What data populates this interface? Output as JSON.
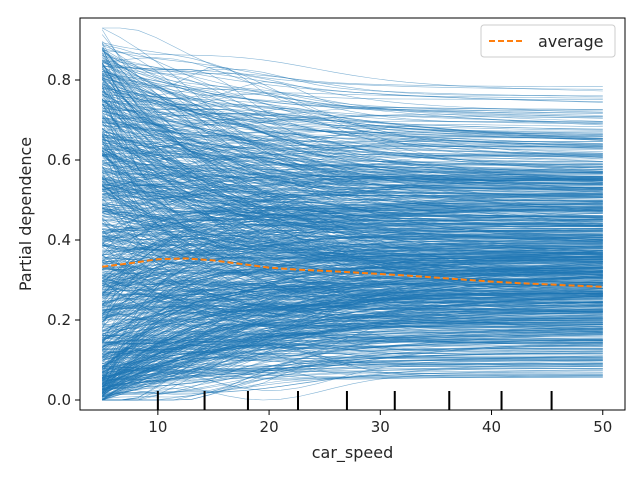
{
  "chart_data": {
    "type": "line",
    "title": "",
    "xlabel": "car_speed",
    "ylabel": "Partial dependence",
    "xlim": [
      3.0,
      52.0
    ],
    "ylim": [
      -0.025,
      0.955
    ],
    "x_ticks": [
      10,
      20,
      30,
      40,
      50
    ],
    "y_ticks": [
      0.0,
      0.2,
      0.4,
      0.6,
      0.8
    ],
    "x_tick_labels": [
      "10",
      "20",
      "30",
      "40",
      "50"
    ],
    "y_tick_labels": [
      "0.0",
      "0.2",
      "0.4",
      "0.6",
      "0.8"
    ],
    "grid": false,
    "legend": {
      "position": "top-right",
      "entries": [
        "average"
      ]
    },
    "individual_curves": {
      "description_source": "ICE lines",
      "count": 1000,
      "color": "#1f77b4",
      "x_range": [
        5,
        50
      ],
      "y_range": [
        0.0,
        0.93
      ]
    },
    "rug_ticks_x": [
      10.0,
      14.2,
      18.1,
      22.6,
      27.0,
      31.3,
      36.2,
      40.9,
      45.4
    ],
    "series": [
      {
        "name": "average",
        "color": "#ff7f0e",
        "style": "dashed",
        "x": [
          5,
          7.5,
          10,
          12.5,
          15,
          17.5,
          20,
          22.5,
          25,
          27.5,
          30,
          32.5,
          35,
          37.5,
          40,
          42.5,
          45,
          47.5,
          50
        ],
        "y": [
          0.333,
          0.342,
          0.352,
          0.354,
          0.349,
          0.34,
          0.331,
          0.326,
          0.323,
          0.319,
          0.315,
          0.311,
          0.306,
          0.301,
          0.296,
          0.292,
          0.289,
          0.286,
          0.283
        ]
      }
    ]
  }
}
